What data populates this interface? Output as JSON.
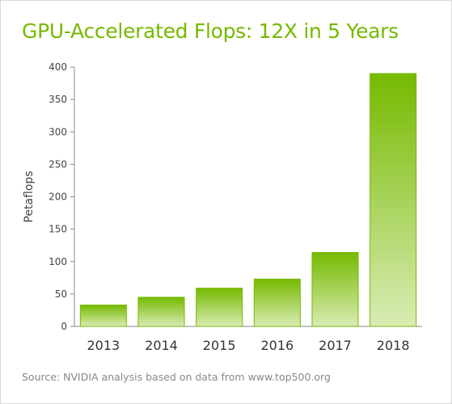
{
  "chart_data": {
    "type": "bar",
    "title": "GPU-Accelerated Flops: 12X in 5 Years",
    "ylabel": "Petaflops",
    "xlabel": "",
    "categories": [
      "2013",
      "2014",
      "2015",
      "2016",
      "2017",
      "2018"
    ],
    "values": [
      33,
      45,
      59,
      73,
      114,
      390
    ],
    "ylim": [
      0,
      400
    ],
    "yticks": [
      0,
      50,
      100,
      150,
      200,
      250,
      300,
      350,
      400
    ],
    "yticks_labels": [
      "0",
      "50",
      "100",
      "150",
      "200",
      "250",
      "300",
      "350",
      "400"
    ],
    "grid": false,
    "legend": "none",
    "colors": {
      "title": "#76b900",
      "bar_top": "#76b900",
      "bar_bottom": "#d9ecb4",
      "bar_stroke": "#76b900"
    },
    "source": "Source: NVIDIA analysis based on data from www.top500.org"
  }
}
